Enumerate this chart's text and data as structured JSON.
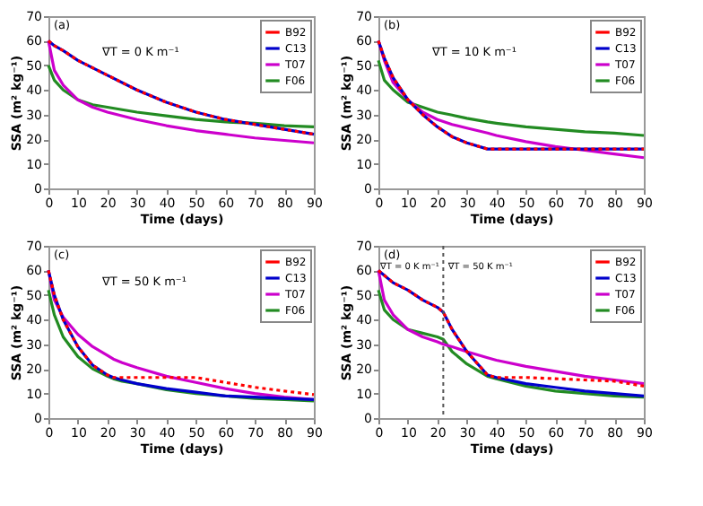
{
  "chart_data": [
    {
      "type": "line",
      "xlabel": "Time (days)",
      "ylabel": "SSA (m² kg⁻¹)",
      "xlim": [
        0,
        90
      ],
      "xticks": [
        0,
        10,
        20,
        30,
        40,
        50,
        60,
        70,
        80,
        90
      ],
      "ylim": [
        0,
        70
      ],
      "yticks": [
        0,
        10,
        20,
        30,
        40,
        50,
        60,
        70
      ],
      "legend": "top right",
      "annotations": [
        "(a)",
        "∇T = 0 K m⁻¹"
      ],
      "x": [
        0,
        2,
        5,
        10,
        15,
        20,
        30,
        40,
        50,
        60,
        70,
        80,
        90
      ],
      "series": [
        {
          "name": "B92",
          "color": "#ff0000",
          "line_style": "dotted",
          "values": [
            60,
            58,
            56,
            52,
            49,
            46,
            40,
            35,
            31,
            28,
            26,
            24,
            22
          ]
        },
        {
          "name": "C13",
          "color": "#0000cc",
          "line_style": "solid",
          "values": [
            60,
            58,
            56,
            52,
            49,
            46,
            40,
            35,
            31,
            28,
            26,
            24,
            22
          ]
        },
        {
          "name": "T07",
          "color": "#cc00cc",
          "line_style": "solid",
          "values": [
            60,
            48,
            42,
            36,
            33,
            31,
            28,
            25.5,
            23.5,
            22,
            20.5,
            19.5,
            18.5
          ]
        },
        {
          "name": "F06",
          "color": "#228b22",
          "line_style": "solid",
          "values": [
            50,
            44,
            40,
            36,
            34,
            33,
            31,
            29.5,
            28,
            27,
            26.5,
            25.5,
            25
          ]
        }
      ]
    },
    {
      "type": "line",
      "xlabel": "Time (days)",
      "ylabel": "SSA (m² kg⁻¹)",
      "xlim": [
        0,
        90
      ],
      "xticks": [
        0,
        10,
        20,
        30,
        40,
        50,
        60,
        70,
        80,
        90
      ],
      "ylim": [
        0,
        70
      ],
      "yticks": [
        0,
        10,
        20,
        30,
        40,
        50,
        60,
        70
      ],
      "legend": "top right",
      "annotations": [
        "(b)",
        "∇T = 10 K m⁻¹"
      ],
      "x": [
        0,
        2,
        5,
        10,
        15,
        20,
        25,
        30,
        37,
        40,
        50,
        60,
        70,
        80,
        90
      ],
      "series": [
        {
          "name": "B92",
          "color": "#ff0000",
          "line_style": "dotted",
          "values": [
            60,
            53,
            45,
            36,
            30,
            25,
            21,
            18.5,
            16,
            16,
            16,
            16,
            16,
            16,
            16
          ]
        },
        {
          "name": "C13",
          "color": "#0000cc",
          "line_style": "solid",
          "values": [
            60,
            53,
            45,
            36,
            30,
            25,
            21,
            18.5,
            16,
            16,
            16,
            16,
            16,
            16,
            16
          ]
        },
        {
          "name": "T07",
          "color": "#cc00cc",
          "line_style": "solid",
          "values": [
            60,
            52,
            43,
            36,
            31,
            28,
            26,
            24.5,
            22.5,
            21.5,
            19,
            17,
            15.5,
            14,
            12.5
          ]
        },
        {
          "name": "F06",
          "color": "#228b22",
          "line_style": "solid",
          "values": [
            52,
            44,
            40,
            35,
            33,
            31,
            29.8,
            28.5,
            27,
            26.5,
            25,
            24,
            23,
            22.5,
            21.5
          ]
        }
      ]
    },
    {
      "type": "line",
      "xlabel": "Time (days)",
      "ylabel": "SSA (m² kg⁻¹)",
      "xlim": [
        0,
        90
      ],
      "xticks": [
        0,
        10,
        20,
        30,
        40,
        50,
        60,
        70,
        80,
        90
      ],
      "ylim": [
        0,
        70
      ],
      "yticks": [
        0,
        10,
        20,
        30,
        40,
        50,
        60,
        70
      ],
      "legend": "top right",
      "annotations": [
        "(c)",
        "∇T = 50 K m⁻¹"
      ],
      "x": [
        0,
        2,
        5,
        10,
        15,
        20,
        22,
        25,
        30,
        40,
        50,
        60,
        70,
        80,
        90
      ],
      "series": [
        {
          "name": "B92",
          "color": "#ff0000",
          "line_style": "dotted",
          "values": [
            60,
            50,
            40,
            29,
            21.5,
            17.5,
            16.5,
            16.5,
            16.5,
            16.5,
            16.5,
            14.5,
            12.5,
            11,
            9.5
          ]
        },
        {
          "name": "C13",
          "color": "#0000cc",
          "line_style": "solid",
          "values": [
            60,
            50,
            40,
            29,
            21.5,
            17.5,
            16.5,
            15.5,
            14,
            12,
            10.5,
            9,
            8.5,
            8,
            7.5
          ]
        },
        {
          "name": "T07",
          "color": "#cc00cc",
          "line_style": "solid",
          "values": [
            60,
            48,
            41,
            34,
            29,
            25.5,
            24,
            22.5,
            20.5,
            17,
            14.5,
            12,
            10,
            8.5,
            7.5
          ]
        },
        {
          "name": "F06",
          "color": "#228b22",
          "line_style": "solid",
          "values": [
            52,
            42,
            33,
            25,
            20,
            17,
            16,
            15,
            14,
            11.5,
            10,
            9,
            8,
            7.5,
            7
          ]
        }
      ]
    },
    {
      "type": "line",
      "xlabel": "Time (days)",
      "ylabel": "SSA (m² kg⁻¹)",
      "xlim": [
        0,
        90
      ],
      "xticks": [
        0,
        10,
        20,
        30,
        40,
        50,
        60,
        70,
        80,
        90
      ],
      "ylim": [
        0,
        70
      ],
      "yticks": [
        0,
        10,
        20,
        30,
        40,
        50,
        60,
        70
      ],
      "legend": "top right",
      "annotations": [
        "(d)",
        {
          "text": "∇T = 0 K m⁻¹",
          "x": 0,
          "y": 62
        },
        {
          "text": "∇T = 50 K m⁻¹",
          "x": 23,
          "y": 62
        }
      ],
      "ref_lines": [
        {
          "axis": "x",
          "value": 22,
          "color": "#555555",
          "line_style": "dotted"
        }
      ],
      "x": [
        0,
        2,
        5,
        10,
        15,
        20,
        22,
        25,
        30,
        37,
        40,
        50,
        60,
        70,
        80,
        90
      ],
      "series": [
        {
          "name": "B92",
          "color": "#ff0000",
          "line_style": "dotted",
          "values": [
            60,
            58,
            55,
            52,
            48,
            45,
            43,
            36,
            27,
            17.5,
            16.5,
            16.5,
            16,
            15.5,
            15,
            13
          ]
        },
        {
          "name": "C13",
          "color": "#0000cc",
          "line_style": "solid",
          "values": [
            60,
            58,
            55,
            52,
            48,
            45,
            43,
            36,
            27,
            17.5,
            16.5,
            14,
            12.5,
            11,
            10,
            9
          ]
        },
        {
          "name": "T07",
          "color": "#cc00cc",
          "line_style": "solid",
          "values": [
            60,
            48,
            42,
            36,
            33,
            31,
            30,
            29,
            27,
            24.5,
            23.5,
            21,
            19,
            17,
            15.5,
            14
          ]
        },
        {
          "name": "F06",
          "color": "#228b22",
          "line_style": "solid",
          "values": [
            52,
            44,
            40,
            36,
            34.5,
            33,
            32,
            27,
            22,
            17,
            16,
            13,
            11,
            10,
            9,
            8.5
          ]
        }
      ]
    }
  ]
}
